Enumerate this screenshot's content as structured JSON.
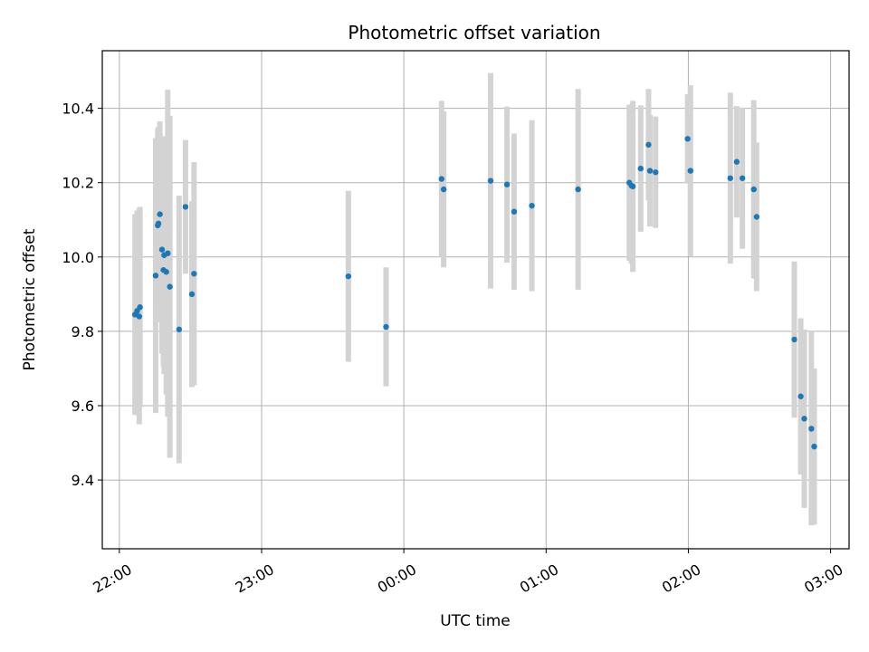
{
  "chart_data": {
    "type": "scatter",
    "title": "Photometric offset variation",
    "xlabel": "UTC time",
    "ylabel": "Photometric offset",
    "x_unit": "hours after 22:00 UTC",
    "xlim": [
      -0.12,
      5.13
    ],
    "ylim": [
      9.215,
      10.555
    ],
    "x_ticks": [
      0,
      1,
      2,
      3,
      4,
      5
    ],
    "x_tick_labels": [
      "22:00",
      "23:00",
      "00:00",
      "01:00",
      "02:00",
      "03:00"
    ],
    "y_ticks": [
      9.4,
      9.6,
      9.8,
      10.0,
      10.2,
      10.4
    ],
    "y_tick_labels": [
      "9.4",
      "9.6",
      "9.8",
      "10.0",
      "10.2",
      "10.4"
    ],
    "grid": true,
    "marker_color": "#1f77b4",
    "errorbar_color": "#d3d3d3",
    "series": [
      {
        "name": "Photometric offset",
        "x": [
          0.11,
          0.125,
          0.14,
          0.145,
          0.255,
          0.27,
          0.275,
          0.285,
          0.3,
          0.31,
          0.315,
          0.33,
          0.34,
          0.355,
          0.42,
          0.465,
          0.51,
          0.525,
          1.61,
          1.875,
          2.265,
          2.28,
          2.61,
          2.725,
          2.775,
          2.9,
          3.225,
          3.585,
          3.6,
          3.61,
          3.665,
          3.72,
          3.73,
          3.77,
          3.995,
          4.015,
          4.295,
          4.34,
          4.38,
          4.46,
          4.48,
          4.745,
          4.79,
          4.815,
          4.865,
          4.885
        ],
        "y": [
          9.845,
          9.855,
          9.84,
          9.865,
          9.95,
          10.085,
          10.09,
          10.115,
          10.02,
          9.965,
          10.005,
          9.96,
          10.01,
          9.92,
          9.805,
          10.135,
          9.9,
          9.955,
          9.948,
          9.812,
          10.21,
          10.182,
          10.205,
          10.195,
          10.122,
          10.138,
          10.182,
          10.2,
          10.192,
          10.19,
          10.238,
          10.302,
          10.232,
          10.228,
          10.318,
          10.232,
          10.212,
          10.256,
          10.212,
          10.182,
          10.108,
          9.778,
          9.625,
          9.565,
          9.538,
          9.49
        ],
        "err": [
          0.27,
          0.27,
          0.29,
          0.27,
          0.37,
          0.26,
          0.26,
          0.25,
          0.28,
          0.26,
          0.32,
          0.33,
          0.44,
          0.46,
          0.36,
          0.18,
          0.25,
          0.3,
          0.23,
          0.16,
          0.21,
          0.21,
          0.29,
          0.21,
          0.21,
          0.23,
          0.27,
          0.21,
          0.21,
          0.23,
          0.17,
          0.15,
          0.15,
          0.15,
          0.12,
          0.23,
          0.23,
          0.15,
          0.19,
          0.24,
          0.2,
          0.21,
          0.21,
          0.24,
          0.26,
          0.21
        ]
      }
    ]
  }
}
